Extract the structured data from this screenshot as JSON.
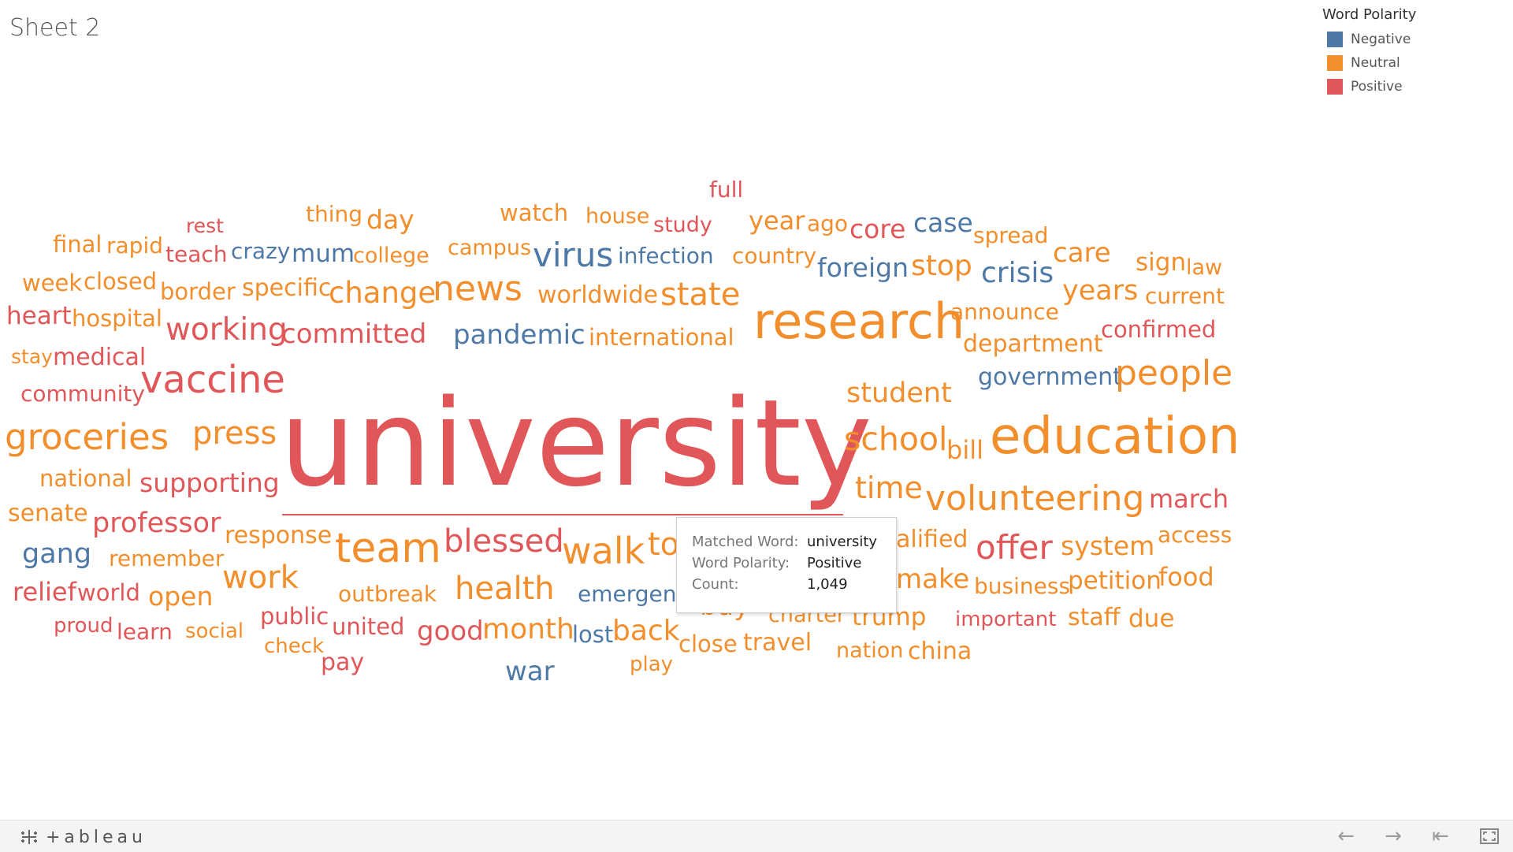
{
  "sheet_title": "Sheet 2",
  "legend": {
    "title": "Word Polarity",
    "items": [
      {
        "label": "Negative",
        "color": "#4e79a7"
      },
      {
        "label": "Neutral",
        "color": "#f28e2b"
      },
      {
        "label": "Positive",
        "color": "#e15759"
      }
    ]
  },
  "colors": {
    "Negative": "#4e79a7",
    "Neutral": "#f28e2b",
    "Positive": "#e15759"
  },
  "tooltip": {
    "matched_word_label": "Matched Word:",
    "matched_word": "university",
    "polarity_label": "Word Polarity:",
    "polarity": "Positive",
    "count_label": "Count:",
    "count": "1,049"
  },
  "words": [
    {
      "text": "university",
      "polarity": "Positive"
    },
    {
      "text": "research",
      "polarity": "Neutral"
    },
    {
      "text": "education",
      "polarity": "Neutral"
    },
    {
      "text": "full",
      "polarity": "Positive"
    },
    {
      "text": "rest",
      "polarity": "Positive"
    },
    {
      "text": "thing",
      "polarity": "Neutral"
    },
    {
      "text": "day",
      "polarity": "Neutral"
    },
    {
      "text": "watch",
      "polarity": "Neutral"
    },
    {
      "text": "house",
      "polarity": "Neutral"
    },
    {
      "text": "study",
      "polarity": "Positive"
    },
    {
      "text": "year",
      "polarity": "Neutral"
    },
    {
      "text": "ago",
      "polarity": "Neutral"
    },
    {
      "text": "core",
      "polarity": "Positive"
    },
    {
      "text": "case",
      "polarity": "Negative"
    },
    {
      "text": "final",
      "polarity": "Neutral"
    },
    {
      "text": "rapid",
      "polarity": "Neutral"
    },
    {
      "text": "teach",
      "polarity": "Positive"
    },
    {
      "text": "crazy",
      "polarity": "Negative"
    },
    {
      "text": "mum",
      "polarity": "Negative"
    },
    {
      "text": "college",
      "polarity": "Neutral"
    },
    {
      "text": "campus",
      "polarity": "Neutral"
    },
    {
      "text": "virus",
      "polarity": "Negative"
    },
    {
      "text": "infection",
      "polarity": "Negative"
    },
    {
      "text": "country",
      "polarity": "Neutral"
    },
    {
      "text": "spread",
      "polarity": "Neutral"
    },
    {
      "text": "week",
      "polarity": "Neutral"
    },
    {
      "text": "closed",
      "polarity": "Neutral"
    },
    {
      "text": "border",
      "polarity": "Neutral"
    },
    {
      "text": "specific",
      "polarity": "Neutral"
    },
    {
      "text": "change",
      "polarity": "Neutral"
    },
    {
      "text": "news",
      "polarity": "Neutral"
    },
    {
      "text": "worldwide",
      "polarity": "Neutral"
    },
    {
      "text": "state",
      "polarity": "Neutral"
    },
    {
      "text": "foreign",
      "polarity": "Negative"
    },
    {
      "text": "stop",
      "polarity": "Neutral"
    },
    {
      "text": "crisis",
      "polarity": "Negative"
    },
    {
      "text": "care",
      "polarity": "Neutral"
    },
    {
      "text": "sign",
      "polarity": "Neutral"
    },
    {
      "text": "law",
      "polarity": "Neutral"
    },
    {
      "text": "heart",
      "polarity": "Positive"
    },
    {
      "text": "hospital",
      "polarity": "Neutral"
    },
    {
      "text": "working",
      "polarity": "Positive"
    },
    {
      "text": "committed",
      "polarity": "Positive"
    },
    {
      "text": "pandemic",
      "polarity": "Negative"
    },
    {
      "text": "international",
      "polarity": "Neutral"
    },
    {
      "text": "announce",
      "polarity": "Neutral"
    },
    {
      "text": "years",
      "polarity": "Neutral"
    },
    {
      "text": "current",
      "polarity": "Neutral"
    },
    {
      "text": "department",
      "polarity": "Neutral"
    },
    {
      "text": "confirmed",
      "polarity": "Positive"
    },
    {
      "text": "stay",
      "polarity": "Neutral"
    },
    {
      "text": "medical",
      "polarity": "Positive"
    },
    {
      "text": "community",
      "polarity": "Positive"
    },
    {
      "text": "vaccine",
      "polarity": "Positive"
    },
    {
      "text": "government",
      "polarity": "Negative"
    },
    {
      "text": "people",
      "polarity": "Neutral"
    },
    {
      "text": "student",
      "polarity": "Neutral"
    },
    {
      "text": "groceries",
      "polarity": "Neutral"
    },
    {
      "text": "press",
      "polarity": "Neutral"
    },
    {
      "text": "school",
      "polarity": "Neutral"
    },
    {
      "text": "bill",
      "polarity": "Neutral"
    },
    {
      "text": "national",
      "polarity": "Neutral"
    },
    {
      "text": "supporting",
      "polarity": "Positive"
    },
    {
      "text": "time",
      "polarity": "Neutral"
    },
    {
      "text": "volunteering",
      "polarity": "Neutral"
    },
    {
      "text": "march",
      "polarity": "Positive"
    },
    {
      "text": "senate",
      "polarity": "Neutral"
    },
    {
      "text": "professor",
      "polarity": "Positive"
    },
    {
      "text": "response",
      "polarity": "Neutral"
    },
    {
      "text": "team",
      "polarity": "Neutral"
    },
    {
      "text": "blessed",
      "polarity": "Positive"
    },
    {
      "text": "walk",
      "polarity": "Neutral"
    },
    {
      "text": "to",
      "polarity": "Neutral"
    },
    {
      "text": "alified",
      "polarity": "Neutral"
    },
    {
      "text": "offer",
      "polarity": "Positive"
    },
    {
      "text": "system",
      "polarity": "Neutral"
    },
    {
      "text": "access",
      "polarity": "Neutral"
    },
    {
      "text": "gang",
      "polarity": "Negative"
    },
    {
      "text": "remember",
      "polarity": "Neutral"
    },
    {
      "text": "work",
      "polarity": "Neutral"
    },
    {
      "text": "make",
      "polarity": "Neutral"
    },
    {
      "text": "business",
      "polarity": "Neutral"
    },
    {
      "text": "petition",
      "polarity": "Neutral"
    },
    {
      "text": "food",
      "polarity": "Neutral"
    },
    {
      "text": "relief",
      "polarity": "Positive"
    },
    {
      "text": "world",
      "polarity": "Neutral"
    },
    {
      "text": "open",
      "polarity": "Neutral"
    },
    {
      "text": "outbreak",
      "polarity": "Neutral"
    },
    {
      "text": "health",
      "polarity": "Neutral"
    },
    {
      "text": "emergenc",
      "polarity": "Negative"
    },
    {
      "text": "buy",
      "polarity": "Neutral"
    },
    {
      "text": "charter",
      "polarity": "Neutral"
    },
    {
      "text": "trump",
      "polarity": "Neutral"
    },
    {
      "text": "important",
      "polarity": "Positive"
    },
    {
      "text": "staff",
      "polarity": "Neutral"
    },
    {
      "text": "due",
      "polarity": "Neutral"
    },
    {
      "text": "proud",
      "polarity": "Positive"
    },
    {
      "text": "learn",
      "polarity": "Positive"
    },
    {
      "text": "social",
      "polarity": "Neutral"
    },
    {
      "text": "public",
      "polarity": "Positive"
    },
    {
      "text": "united",
      "polarity": "Positive"
    },
    {
      "text": "good",
      "polarity": "Positive"
    },
    {
      "text": "month",
      "polarity": "Neutral"
    },
    {
      "text": "lost",
      "polarity": "Negative"
    },
    {
      "text": "back",
      "polarity": "Neutral"
    },
    {
      "text": "close",
      "polarity": "Neutral"
    },
    {
      "text": "travel",
      "polarity": "Neutral"
    },
    {
      "text": "nation",
      "polarity": "Neutral"
    },
    {
      "text": "china",
      "polarity": "Neutral"
    },
    {
      "text": "check",
      "polarity": "Neutral"
    },
    {
      "text": "pay",
      "polarity": "Positive"
    },
    {
      "text": "war",
      "polarity": "Negative"
    },
    {
      "text": "play",
      "polarity": "Neutral"
    }
  ],
  "footer": {
    "logo_text": "+ableau",
    "nav_icons": [
      "undo-icon",
      "redo-icon",
      "revert-icon",
      "fullscreen-icon"
    ]
  }
}
